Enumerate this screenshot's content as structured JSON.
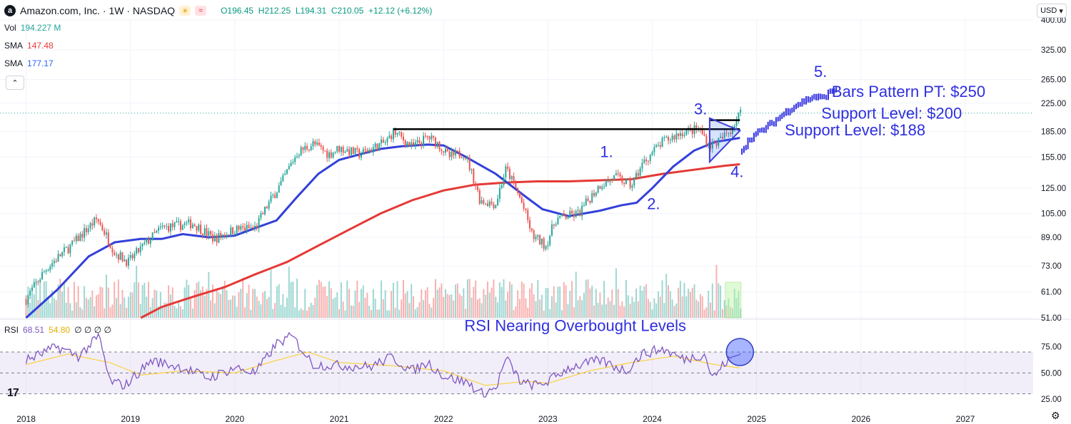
{
  "header": {
    "logo_letter": "a",
    "symbol_title": "Amazon.com, Inc. · 1W · NASDAQ",
    "sun_icon": "☀",
    "wave_icon": "≈",
    "open": "O196.45",
    "high": "H212.25",
    "low": "L194.31",
    "close": "C210.05",
    "change": "+12.12 (+6.12%)"
  },
  "legend": {
    "vol_label": "Vol",
    "vol_value": "194.227 M",
    "sma1_label": "SMA",
    "sma1_value": "147.48",
    "sma2_label": "SMA",
    "sma2_value": "177.17",
    "collapse_icon": "⌃"
  },
  "currency": "USD",
  "rsi_legend": {
    "label": "RSI",
    "value1": "68.51",
    "value2": "54.80",
    "rest": "∅ ∅ ∅ ∅"
  },
  "colors": {
    "up": "#26a69a",
    "down": "#ef5350",
    "sma_fast": "#2962ff",
    "sma_fast_line": "#3340d9",
    "sma_slow": "#e53935",
    "annotation": "#2f2fe0",
    "rsi": "#7e57c2",
    "rsi_ma": "#f9d34c"
  },
  "tv_logo": "17",
  "settings_icon": "⚙",
  "chart_data": [
    {
      "type": "candlestick",
      "title": "Amazon.com, Inc. · 1W · NASDAQ",
      "scale": "log",
      "ylim": [
        51,
        400
      ],
      "y_ticks": [
        "400.00",
        "325.00",
        "265.00",
        "225.00",
        "185.00",
        "155.00",
        "125.00",
        "105.00",
        "89.00",
        "73.00",
        "61.00",
        "51.00"
      ],
      "x_ticks": [
        "2018",
        "2019",
        "2020",
        "2021",
        "2022",
        "2023",
        "2024",
        "2025",
        "2026",
        "2027"
      ],
      "price_path": [
        [
          2018.0,
          58
        ],
        [
          2018.2,
          72
        ],
        [
          2018.45,
          85
        ],
        [
          2018.68,
          101
        ],
        [
          2018.85,
          80
        ],
        [
          2018.98,
          75
        ],
        [
          2019.3,
          95
        ],
        [
          2019.6,
          98
        ],
        [
          2019.8,
          88
        ],
        [
          2020.0,
          94
        ],
        [
          2020.2,
          95
        ],
        [
          2020.45,
          130
        ],
        [
          2020.6,
          160
        ],
        [
          2020.75,
          170
        ],
        [
          2020.9,
          158
        ],
        [
          2021.0,
          165
        ],
        [
          2021.2,
          158
        ],
        [
          2021.45,
          172
        ],
        [
          2021.52,
          185
        ],
        [
          2021.7,
          166
        ],
        [
          2021.85,
          178
        ],
        [
          2021.95,
          170
        ],
        [
          2022.05,
          155
        ],
        [
          2022.2,
          160
        ],
        [
          2022.35,
          115
        ],
        [
          2022.5,
          112
        ],
        [
          2022.6,
          143
        ],
        [
          2022.75,
          113
        ],
        [
          2022.85,
          90
        ],
        [
          2022.98,
          84
        ],
        [
          2023.08,
          101
        ],
        [
          2023.3,
          105
        ],
        [
          2023.5,
          128
        ],
        [
          2023.65,
          135
        ],
        [
          2023.8,
          127
        ],
        [
          2023.92,
          150
        ],
        [
          2024.1,
          172
        ],
        [
          2024.3,
          185
        ],
        [
          2024.45,
          188
        ],
        [
          2024.55,
          168
        ],
        [
          2024.65,
          174
        ],
        [
          2024.75,
          187
        ],
        [
          2024.84,
          210
        ]
      ],
      "sma_fast": [
        [
          2018.0,
          51
        ],
        [
          2018.3,
          62
        ],
        [
          2018.6,
          78
        ],
        [
          2018.85,
          86
        ],
        [
          2019.1,
          88
        ],
        [
          2019.3,
          88
        ],
        [
          2019.5,
          91
        ],
        [
          2019.75,
          89
        ],
        [
          2020.0,
          90
        ],
        [
          2020.2,
          95
        ],
        [
          2020.4,
          100
        ],
        [
          2020.6,
          118
        ],
        [
          2020.8,
          138
        ],
        [
          2021.0,
          152
        ],
        [
          2021.2,
          158
        ],
        [
          2021.4,
          164
        ],
        [
          2021.6,
          167
        ],
        [
          2021.85,
          169
        ],
        [
          2022.0,
          168
        ],
        [
          2022.2,
          156
        ],
        [
          2022.5,
          138
        ],
        [
          2022.8,
          117
        ],
        [
          2022.95,
          108
        ],
        [
          2023.2,
          103
        ],
        [
          2023.5,
          107
        ],
        [
          2023.7,
          111
        ],
        [
          2023.85,
          113
        ],
        [
          2024.0,
          125
        ],
        [
          2024.2,
          145
        ],
        [
          2024.4,
          162
        ],
        [
          2024.6,
          172
        ],
        [
          2024.84,
          177
        ]
      ],
      "sma_slow": [
        [
          2019.1,
          51
        ],
        [
          2019.3,
          55
        ],
        [
          2019.6,
          59
        ],
        [
          2019.9,
          63
        ],
        [
          2020.2,
          69
        ],
        [
          2020.5,
          75
        ],
        [
          2020.8,
          84
        ],
        [
          2021.1,
          94
        ],
        [
          2021.4,
          105
        ],
        [
          2021.7,
          115
        ],
        [
          2022.0,
          123
        ],
        [
          2022.3,
          128
        ],
        [
          2022.6,
          130
        ],
        [
          2022.9,
          131
        ],
        [
          2023.2,
          131
        ],
        [
          2023.5,
          132
        ],
        [
          2023.8,
          133
        ],
        [
          2024.1,
          138
        ],
        [
          2024.4,
          142
        ],
        [
          2024.7,
          146
        ],
        [
          2024.84,
          147.48
        ]
      ],
      "projection": [
        [
          2024.84,
          160
        ],
        [
          2024.95,
          178
        ],
        [
          2025.05,
          186
        ],
        [
          2025.15,
          196
        ],
        [
          2025.25,
          208
        ],
        [
          2025.35,
          220
        ],
        [
          2025.45,
          228
        ],
        [
          2025.55,
          236
        ],
        [
          2025.62,
          232
        ],
        [
          2025.7,
          242
        ],
        [
          2025.77,
          250
        ]
      ],
      "horizontal_lines": [
        {
          "value": 188,
          "from": 2021.52,
          "to": 2024.84
        },
        {
          "value": 200,
          "from": 2024.55,
          "to": 2024.84
        }
      ],
      "triangle_pattern": [
        [
          2024.55,
          203
        ],
        [
          2024.55,
          150
        ],
        [
          2024.84,
          186
        ]
      ],
      "annotations": [
        {
          "text": "1.",
          "at": [
            2023.5,
            155
          ]
        },
        {
          "text": "2.",
          "at": [
            2023.95,
            108
          ]
        },
        {
          "text": "3.",
          "at": [
            2024.4,
            208
          ]
        },
        {
          "text": "4.",
          "at": [
            2024.75,
            135
          ]
        },
        {
          "text": "5.",
          "at": [
            2025.55,
            270
          ]
        },
        {
          "text": "Bars Pattern PT: $250",
          "at": [
            2025.72,
            235
          ]
        },
        {
          "text": "Support Level: $200",
          "at": [
            2025.62,
            202
          ]
        },
        {
          "text": "Support Level: $188",
          "at": [
            2025.27,
            180
          ]
        }
      ],
      "volume_label": "Vol",
      "last_volume": "194.227 M"
    },
    {
      "type": "line",
      "title": "RSI",
      "ylim": [
        25,
        100
      ],
      "y_ticks": [
        "75.00",
        "50.00",
        "25.00"
      ],
      "overbought": 70,
      "oversold": 30,
      "rsi_path": [
        [
          2018.0,
          62
        ],
        [
          2018.3,
          75
        ],
        [
          2018.5,
          66
        ],
        [
          2018.7,
          85
        ],
        [
          2018.8,
          42
        ],
        [
          2018.95,
          38
        ],
        [
          2019.2,
          62
        ],
        [
          2019.5,
          55
        ],
        [
          2019.75,
          45
        ],
        [
          2020.0,
          55
        ],
        [
          2020.2,
          50
        ],
        [
          2020.4,
          78
        ],
        [
          2020.55,
          85
        ],
        [
          2020.75,
          58
        ],
        [
          2021.0,
          57
        ],
        [
          2021.3,
          56
        ],
        [
          2021.5,
          65
        ],
        [
          2021.7,
          52
        ],
        [
          2021.85,
          60
        ],
        [
          2022.0,
          47
        ],
        [
          2022.25,
          40
        ],
        [
          2022.35,
          30
        ],
        [
          2022.5,
          35
        ],
        [
          2022.6,
          64
        ],
        [
          2022.75,
          40
        ],
        [
          2022.9,
          38
        ],
        [
          2023.0,
          42
        ],
        [
          2023.2,
          55
        ],
        [
          2023.5,
          62
        ],
        [
          2023.75,
          52
        ],
        [
          2023.9,
          68
        ],
        [
          2024.1,
          73
        ],
        [
          2024.3,
          63
        ],
        [
          2024.5,
          68
        ],
        [
          2024.58,
          45
        ],
        [
          2024.7,
          60
        ],
        [
          2024.84,
          68.5
        ]
      ],
      "rsi_ma_path": [
        [
          2018.0,
          58
        ],
        [
          2018.4,
          68
        ],
        [
          2018.8,
          60
        ],
        [
          2019.1,
          48
        ],
        [
          2019.5,
          52
        ],
        [
          2020.0,
          50
        ],
        [
          2020.4,
          62
        ],
        [
          2020.7,
          70
        ],
        [
          2021.0,
          60
        ],
        [
          2021.5,
          57
        ],
        [
          2022.0,
          52
        ],
        [
          2022.4,
          38
        ],
        [
          2022.8,
          42
        ],
        [
          2023.0,
          40
        ],
        [
          2023.4,
          52
        ],
        [
          2023.8,
          60
        ],
        [
          2024.2,
          66
        ],
        [
          2024.6,
          58
        ],
        [
          2024.84,
          54.8
        ]
      ],
      "annotation": {
        "text": "RSI Nearing Overbought Levels",
        "at": [
          2022.2,
          90
        ]
      },
      "highlight_circle": {
        "at": [
          2024.84,
          70
        ]
      },
      "legend_values": [
        "68.51",
        "54.80"
      ]
    }
  ]
}
